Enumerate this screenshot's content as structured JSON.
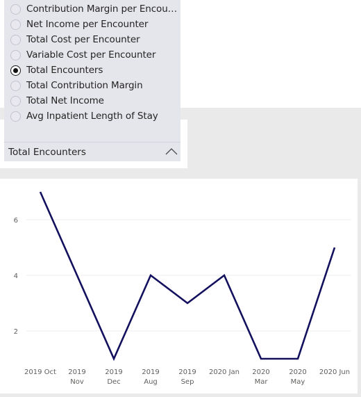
{
  "slicer": {
    "options": [
      {
        "label": "Contribution Margin per Encount...",
        "selected": false
      },
      {
        "label": "Net Income per Encounter",
        "selected": false
      },
      {
        "label": "Total Cost per Encounter",
        "selected": false
      },
      {
        "label": "Variable Cost per Encounter",
        "selected": false
      },
      {
        "label": "Total Encounters",
        "selected": true
      },
      {
        "label": "Total Contribution Margin",
        "selected": false
      },
      {
        "label": "Total Net Income",
        "selected": false
      },
      {
        "label": "Avg Inpatient Length of Stay",
        "selected": false
      }
    ],
    "selected_label": "Total Encounters",
    "chevron_icon": "chevron-up-icon"
  },
  "chart_data": {
    "type": "line",
    "categories": [
      "2019 Oct",
      "2019 Nov",
      "2019 Dec",
      "2019 Aug",
      "2019 Sep",
      "2020 Jan",
      "2020 Mar",
      "2020 May",
      "2020 Jun"
    ],
    "category_labels": [
      [
        "2019 Oct"
      ],
      [
        "2019",
        "Nov"
      ],
      [
        "2019",
        "Dec"
      ],
      [
        "2019",
        "Aug"
      ],
      [
        "2019",
        "Sep"
      ],
      [
        "2020 Jan"
      ],
      [
        "2020",
        "Mar"
      ],
      [
        "2020",
        "May"
      ],
      [
        "2020 Jun"
      ]
    ],
    "values": [
      7,
      4,
      1,
      4,
      3,
      4,
      1,
      1,
      5
    ],
    "yticks": [
      2,
      4,
      6
    ],
    "ylim": [
      1,
      7
    ],
    "color": "#13105e",
    "grid": true
  }
}
